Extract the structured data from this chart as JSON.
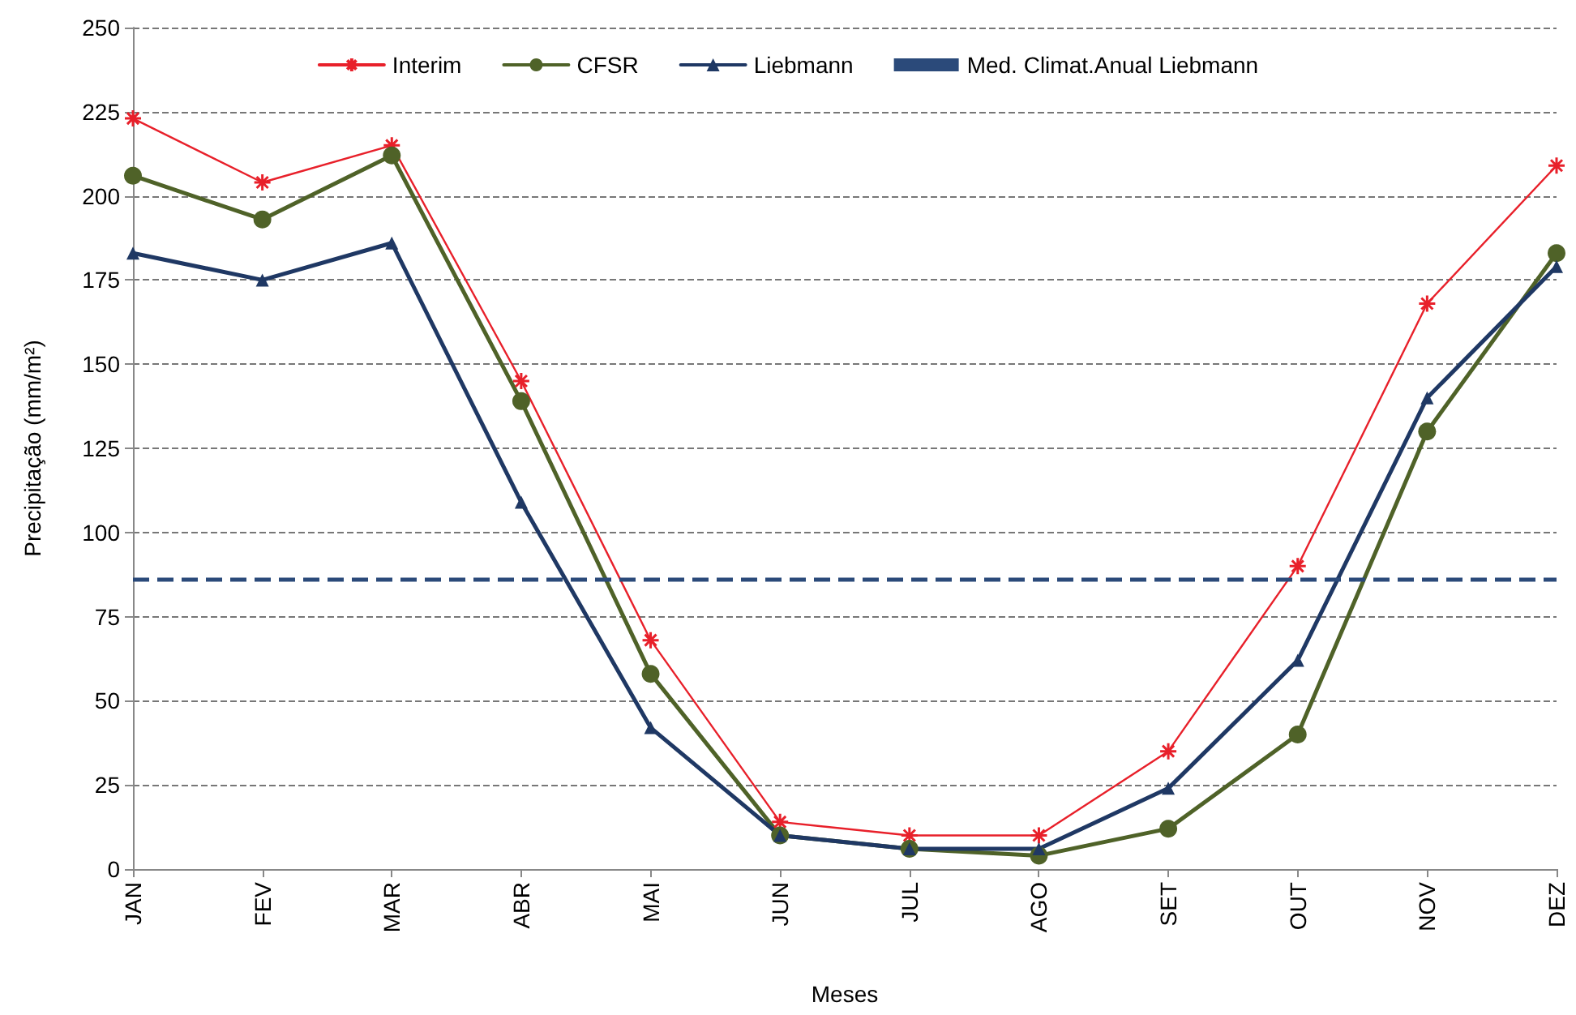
{
  "chart_data": {
    "type": "line",
    "xlabel": "Meses",
    "ylabel": "Precipitação (mm/m²)",
    "categories": [
      "JAN",
      "FEV",
      "MAR",
      "ABR",
      "MAI",
      "JUN",
      "JUL",
      "AGO",
      "SET",
      "OUT",
      "NOV",
      "DEZ"
    ],
    "series": [
      {
        "name": "Interim",
        "color": "#e8202a",
        "marker": "cross",
        "values": [
          223,
          204,
          215,
          145,
          68,
          14,
          10,
          10,
          35,
          90,
          168,
          209
        ]
      },
      {
        "name": "CFSR",
        "color": "#4f6228",
        "marker": "circle",
        "values": [
          206,
          193,
          212,
          139,
          58,
          10,
          6,
          4,
          12,
          40,
          130,
          183
        ]
      },
      {
        "name": "Liebmann",
        "color": "#1f3864",
        "marker": "triangle",
        "values": [
          183,
          175,
          186,
          109,
          42,
          10,
          6,
          6,
          24,
          62,
          140,
          179
        ]
      }
    ],
    "ref_lines": [
      {
        "axis": "y",
        "value": 86,
        "label": "Med. Climat.Anual Liebmann",
        "color": "#2b4a7a",
        "line_style": "dashed"
      }
    ],
    "ylim": [
      0,
      250
    ],
    "yticks": [
      0,
      25,
      50,
      75,
      100,
      125,
      150,
      175,
      200,
      225,
      250
    ],
    "grid": "y",
    "legend": "top",
    "line_style": "solid"
  }
}
